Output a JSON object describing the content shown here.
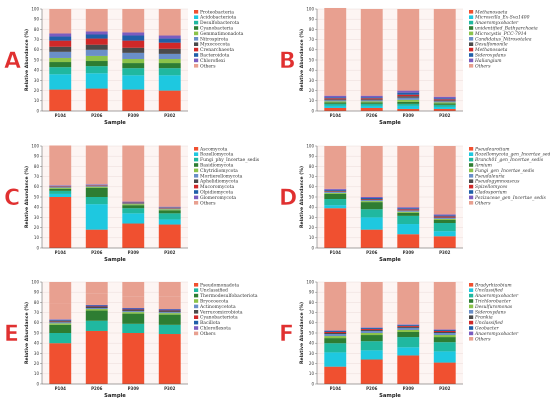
{
  "chart_data": [
    {
      "letter": "A",
      "type": "bar",
      "stacked": true,
      "xlabel": "Sample",
      "ylabel": "Relative Abundance (%)",
      "ylim": [
        0,
        100
      ],
      "yticks": [
        0,
        10,
        20,
        30,
        40,
        50,
        60,
        70,
        80,
        90,
        100
      ],
      "categories": [
        "P104",
        "P206",
        "P309",
        "P302"
      ],
      "legend_italic": false,
      "series": [
        {
          "name": "Others",
          "color": "#e8a090",
          "values": [
            24,
            22,
            23,
            26
          ]
        },
        {
          "name": "Chloroflexi",
          "color": "#7a5cc0",
          "values": [
            3,
            3,
            3,
            3
          ]
        },
        {
          "name": "Bacteroidota",
          "color": "#1f5fa8",
          "values": [
            4,
            4,
            5,
            4
          ]
        },
        {
          "name": "Crenarchaeota",
          "color": "#d02828",
          "values": [
            6,
            6,
            7,
            6
          ]
        },
        {
          "name": "Myxococcota",
          "color": "#4a4a4a",
          "values": [
            5,
            5,
            5,
            5
          ]
        },
        {
          "name": "Nitrospirota",
          "color": "#6a8fc8",
          "values": [
            6,
            6,
            6,
            5
          ]
        },
        {
          "name": "Gemmatimonadota",
          "color": "#8bc34a",
          "values": [
            4,
            5,
            4,
            4
          ]
        },
        {
          "name": "Cyanobacteria",
          "color": "#2e7d32",
          "values": [
            5,
            5,
            5,
            5
          ]
        },
        {
          "name": "Desulfobacterota",
          "color": "#20b8a0",
          "values": [
            7,
            7,
            7,
            7
          ]
        },
        {
          "name": "Acidobacteriota",
          "color": "#1ec8e0",
          "values": [
            15,
            15,
            14,
            15
          ]
        },
        {
          "name": "Proteobacteria",
          "color": "#f05030",
          "values": [
            21,
            22,
            21,
            20
          ]
        }
      ]
    },
    {
      "letter": "B",
      "type": "bar",
      "stacked": true,
      "xlabel": "Sample",
      "ylabel": "Relative Abundance (%)",
      "ylim": [
        0,
        100
      ],
      "yticks": [
        0,
        10,
        20,
        30,
        40,
        50,
        60,
        70,
        80,
        90,
        100
      ],
      "categories": [
        "P104",
        "P206",
        "P309",
        "P302"
      ],
      "legend_italic": true,
      "series": [
        {
          "name": "Others",
          "color": "#e8a090",
          "values": [
            86,
            85,
            80,
            86
          ]
        },
        {
          "name": "Haliangium",
          "color": "#7a5cc0",
          "values": [
            1.5,
            1.5,
            2,
            1.5
          ]
        },
        {
          "name": "Sideroxydans",
          "color": "#1f5fa8",
          "values": [
            1,
            1,
            2,
            1
          ]
        },
        {
          "name": "Methanosaeta",
          "color": "#d02828",
          "values": [
            1,
            1,
            1.5,
            1
          ]
        },
        {
          "name": "Desulfomonile",
          "color": "#4a4a4a",
          "values": [
            1,
            1,
            1.5,
            1
          ]
        },
        {
          "name": "Candidatus_Nitrosotalea",
          "color": "#6a8fc8",
          "values": [
            1,
            1,
            2,
            1
          ]
        },
        {
          "name": "Microcystis_PCC-7914",
          "color": "#8bc34a",
          "values": [
            1,
            1,
            2,
            1
          ]
        },
        {
          "name": "unidentified_Bathyarchaeia",
          "color": "#2e7d32",
          "values": [
            1.5,
            1.5,
            2,
            1.5
          ]
        },
        {
          "name": "Anaeromyxobacter",
          "color": "#20b8a0",
          "values": [
            2,
            2,
            2,
            2
          ]
        },
        {
          "name": "Microscilla_Ex-Sva1400",
          "color": "#1ec8e0",
          "values": [
            2,
            2,
            3,
            2
          ]
        },
        {
          "name": "Methanosaeta",
          "color": "#f05030",
          "values": [
            3,
            3,
            2,
            2
          ]
        }
      ]
    },
    {
      "letter": "C",
      "type": "bar",
      "stacked": true,
      "xlabel": "Sample",
      "ylabel": "Relative Abundance (%)",
      "ylim": [
        0,
        100
      ],
      "yticks": [
        0,
        10,
        20,
        30,
        40,
        50,
        60,
        70,
        80,
        90,
        100
      ],
      "categories": [
        "P104",
        "P206",
        "P309",
        "P302"
      ],
      "legend_italic": false,
      "series": [
        {
          "name": "Others",
          "color": "#e8a090",
          "values": [
            39,
            38,
            55,
            60
          ]
        },
        {
          "name": "Glomeromycota",
          "color": "#7a5cc0",
          "values": [
            0.5,
            0.5,
            0.5,
            0.5
          ]
        },
        {
          "name": "Olpidiomycota",
          "color": "#1f5fa8",
          "values": [
            0.5,
            0.5,
            0.5,
            0.5
          ]
        },
        {
          "name": "Mucoromycota",
          "color": "#d02828",
          "values": [
            0.5,
            0.5,
            0.5,
            0.5
          ]
        },
        {
          "name": "Aphelidiomycota",
          "color": "#4a4a4a",
          "values": [
            0.5,
            0.5,
            0.5,
            0.5
          ]
        },
        {
          "name": "Mortierellomycota",
          "color": "#6a8fc8",
          "values": [
            0.5,
            0.5,
            0.5,
            0.5
          ]
        },
        {
          "name": "Chytridiomycota",
          "color": "#8bc34a",
          "values": [
            1,
            1,
            1,
            1
          ]
        },
        {
          "name": "Basidiomycota",
          "color": "#2e7d32",
          "values": [
            2,
            9,
            3,
            3
          ]
        },
        {
          "name": "Fungi_phy_Incertae_sedis",
          "color": "#20b8a0",
          "values": [
            3,
            7,
            5,
            6
          ]
        },
        {
          "name": "Rozellomycota",
          "color": "#1ec8e0",
          "values": [
            3,
            25,
            10,
            5
          ]
        },
        {
          "name": "Ascomycota",
          "color": "#f05030",
          "values": [
            50,
            18,
            24,
            23
          ]
        }
      ]
    },
    {
      "letter": "D",
      "type": "bar",
      "stacked": true,
      "xlabel": "Sample",
      "ylabel": "Relative Abundance (%)",
      "ylim": [
        0,
        100
      ],
      "yticks": [
        0,
        10,
        20,
        30,
        40,
        50,
        60,
        70,
        80,
        90,
        100
      ],
      "categories": [
        "P104",
        "P206",
        "P309",
        "P302"
      ],
      "legend_italic": true,
      "series": [
        {
          "name": "Others",
          "color": "#e8a090",
          "values": [
            42,
            50,
            60,
            67
          ]
        },
        {
          "name": "Pezizaceae_gen_Incertae_sedis",
          "color": "#7a5cc0",
          "values": [
            1,
            1,
            1,
            1
          ]
        },
        {
          "name": "Cladosporium",
          "color": "#1f5fa8",
          "values": [
            1,
            1,
            1,
            1
          ]
        },
        {
          "name": "Spizellomyces",
          "color": "#d02828",
          "values": [
            0.5,
            0.5,
            1,
            1
          ]
        },
        {
          "name": "Pseudogymnoascus",
          "color": "#4a4a4a",
          "values": [
            0.5,
            0.5,
            0.5,
            0.5
          ]
        },
        {
          "name": "Pseudaleuria",
          "color": "#6a8fc8",
          "values": [
            1,
            1,
            1,
            1
          ]
        },
        {
          "name": "Fungi_gen_Incertae_sedis",
          "color": "#8bc34a",
          "values": [
            1,
            1,
            1,
            1
          ]
        },
        {
          "name": "Arnium",
          "color": "#2e7d32",
          "values": [
            5,
            7,
            3,
            3
          ]
        },
        {
          "name": "Branch01_gen_Incertae_sedis",
          "color": "#20b8a0",
          "values": [
            6,
            8,
            8,
            8
          ]
        },
        {
          "name": "Rozellomycota_gen_Incertae_sedis",
          "color": "#1ec8e0",
          "values": [
            3,
            12,
            10,
            5
          ]
        },
        {
          "name": "Pseudeurotium",
          "color": "#f05030",
          "values": [
            39,
            18,
            13.5,
            11.5
          ]
        }
      ]
    },
    {
      "letter": "E",
      "type": "bar",
      "stacked": true,
      "xlabel": "Sample",
      "ylabel": "Relative Abundance (%)",
      "ylim": [
        0,
        100
      ],
      "yticks": [
        0,
        10,
        20,
        30,
        40,
        50,
        60,
        70,
        80,
        90,
        100
      ],
      "categories": [
        "P104",
        "P206",
        "P309",
        "P302"
      ],
      "legend_italic": false,
      "series": [
        {
          "name": "Others",
          "color": "#e8a090",
          "values": [
            15,
            11,
            11,
            12
          ]
        },
        {
          "name": "Chloroflexota",
          "color": "#7a5cc0",
          "values": [
            0.5,
            0.5,
            0.5,
            0.5
          ]
        },
        {
          "name": "Bacillota",
          "color": "#1f5fa8",
          "values": [
            1,
            1,
            1,
            1
          ]
        },
        {
          "name": "Cyanobacteriota",
          "color": "#d02828",
          "values": [
            0.5,
            0.5,
            0.5,
            0.5
          ]
        },
        {
          "name": "Verrucomicrobiota",
          "color": "#4a4a4a",
          "values": [
            1,
            1,
            1,
            1
          ]
        },
        {
          "name": "Actinomycetota",
          "color": "#6a8fc8",
          "values": [
            1,
            1,
            1,
            1
          ]
        },
        {
          "name": "Bryocoecota",
          "color": "#8bc34a",
          "values": [
            1.5,
            1.5,
            1.5,
            1.5
          ]
        },
        {
          "name": "Thermodesulfobacteriota",
          "color": "#2e7d32",
          "values": [
            8,
            10,
            10,
            10
          ]
        },
        {
          "name": "Unclassified",
          "color": "#20b8a0",
          "values": [
            10,
            10,
            9,
            9
          ]
        },
        {
          "name": "Pseudomonadota",
          "color": "#f05030",
          "values": [
            40,
            52,
            50,
            49
          ]
        }
      ]
    },
    {
      "letter": "F",
      "type": "bar",
      "stacked": true,
      "xlabel": "Sample",
      "ylabel": "Relative Abundance (%)",
      "ylim": [
        0,
        100
      ],
      "yticks": [
        0,
        10,
        20,
        30,
        40,
        50,
        60,
        70,
        80,
        90,
        100
      ],
      "categories": [
        "P104",
        "P206",
        "P309",
        "P302"
      ],
      "legend_italic": true,
      "series": [
        {
          "name": "Others",
          "color": "#e8a090",
          "values": [
            47,
            43,
            41,
            46
          ]
        },
        {
          "name": "Anaeromyxobacter",
          "color": "#7a5cc0",
          "values": [
            0.5,
            0.5,
            0.5,
            0.5
          ]
        },
        {
          "name": "Geobacter",
          "color": "#1f5fa8",
          "values": [
            1,
            1,
            1,
            1
          ]
        },
        {
          "name": "Unclassified",
          "color": "#d02828",
          "values": [
            1,
            1,
            1,
            1
          ]
        },
        {
          "name": "Frankia",
          "color": "#4a4a4a",
          "values": [
            1,
            1,
            1,
            1
          ]
        },
        {
          "name": "Sideroxydans",
          "color": "#6a8fc8",
          "values": [
            2,
            2,
            2,
            2
          ]
        },
        {
          "name": "Desulfuromonas",
          "color": "#8bc34a",
          "values": [
            2,
            2,
            2,
            2
          ]
        },
        {
          "name": "Trichlorobacter",
          "color": "#2e7d32",
          "values": [
            5,
            6,
            5,
            5
          ]
        },
        {
          "name": "Anaeromyxobacter",
          "color": "#20b8a0",
          "values": [
            9,
            9,
            10,
            9
          ]
        },
        {
          "name": "Unclassified",
          "color": "#1ec8e0",
          "values": [
            14,
            9,
            8,
            11
          ]
        },
        {
          "name": "Bradyrhizobium",
          "color": "#f05030",
          "values": [
            17,
            24,
            28,
            21
          ]
        }
      ]
    }
  ]
}
